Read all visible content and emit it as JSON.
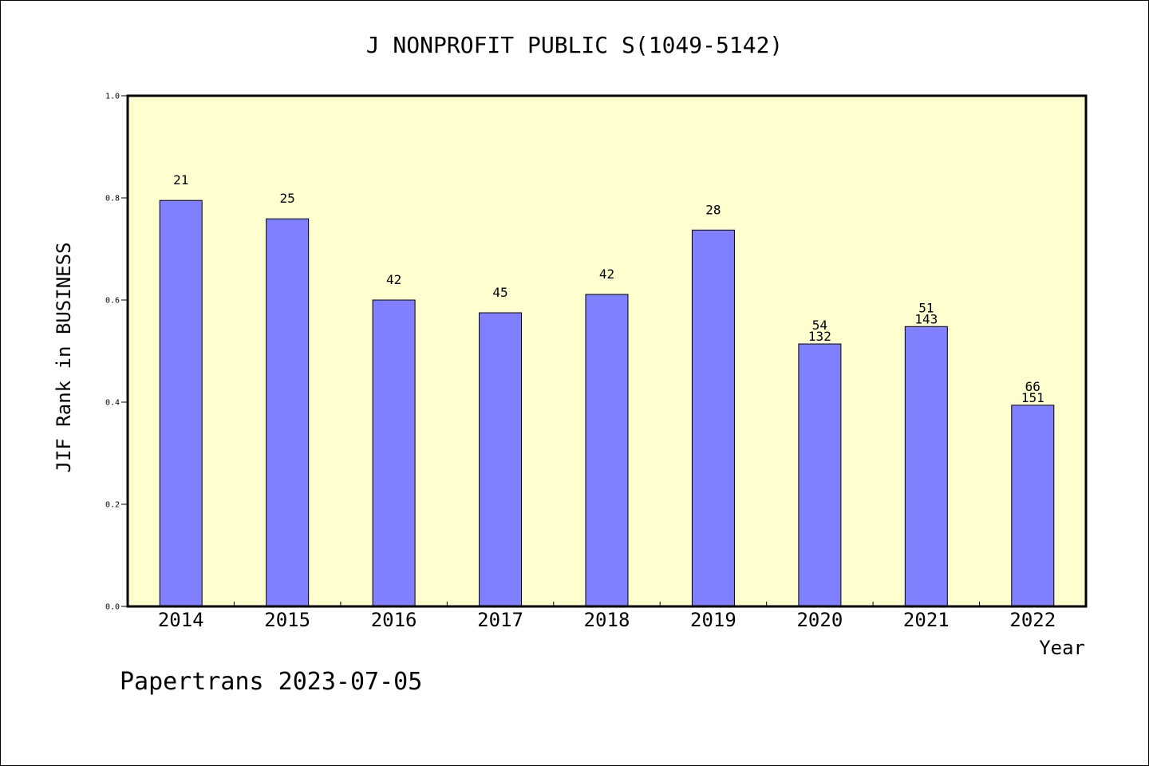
{
  "chart_data": {
    "type": "bar",
    "title": "J NONPROFIT PUBLIC S(1049-5142)",
    "xlabel": "Year",
    "ylabel": "JIF Rank in BUSINESS",
    "ylim": [
      0.0,
      1.0
    ],
    "yticks": [
      "0.0",
      "0.2",
      "0.4",
      "0.6",
      "0.8",
      "1.0"
    ],
    "categories": [
      "2014",
      "2015",
      "2016",
      "2017",
      "2018",
      "2019",
      "2020",
      "2021",
      "2022"
    ],
    "values": [
      0.795,
      0.759,
      0.6,
      0.575,
      0.611,
      0.737,
      0.514,
      0.548,
      0.394
    ],
    "labels": [
      [
        "21"
      ],
      [
        "25"
      ],
      [
        "42"
      ],
      [
        "45"
      ],
      [
        "42"
      ],
      [
        "28"
      ],
      [
        "54",
        "132"
      ],
      [
        "51",
        "143"
      ],
      [
        "66",
        "151"
      ]
    ],
    "colors": {
      "plot_bg": "#ffffd0",
      "bar": "#8080ff",
      "border": "#000000"
    }
  },
  "footer": "Papertrans 2023-07-05"
}
